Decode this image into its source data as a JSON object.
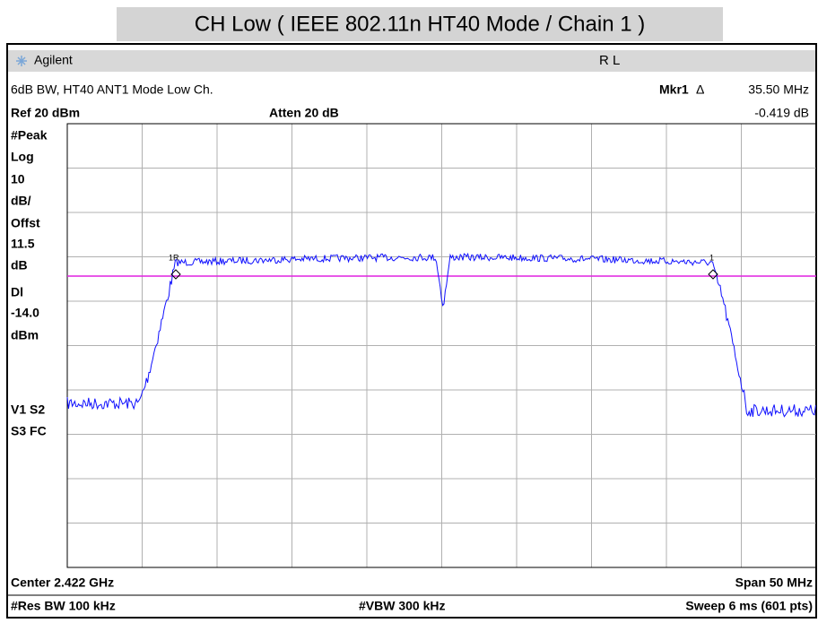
{
  "title": "CH Low ( IEEE 802.11n HT40 Mode / Chain 1 )",
  "header": {
    "brand": "Agilent",
    "mode": "R L"
  },
  "info": {
    "description": "6dB BW, HT40 ANT1 Mode Low Ch.",
    "marker_label": "Mkr1",
    "marker_delta": "Δ",
    "marker_freq": "35.50 MHz",
    "ref": "Ref 20 dBm",
    "atten": "Atten 20 dB",
    "marker_level": "-0.419 dB"
  },
  "left_labels": [
    "#Peak",
    "Log",
    "10",
    "dB/",
    "Offst",
    "11.5",
    "dB",
    "Dl",
    "-14.0",
    "dBm",
    "V1  S2",
    "S3  FC"
  ],
  "markers": [
    "1R",
    "1"
  ],
  "footer": {
    "center": "Center 2.422 GHz",
    "span": "Span 50 MHz",
    "rbw": "#Res BW 100 kHz",
    "vbw": "#VBW 300 kHz",
    "sweep": "Sweep 6 ms (601 pts)"
  }
}
